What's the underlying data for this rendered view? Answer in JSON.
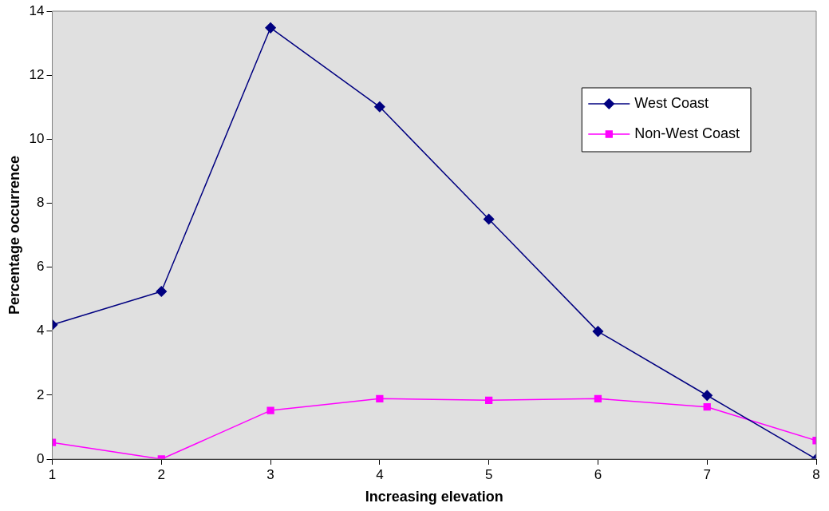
{
  "chart_data": {
    "type": "line",
    "xlabel": "Increasing elevation",
    "ylabel": "Percentage occurrence",
    "x": [
      1,
      2,
      3,
      4,
      5,
      6,
      7,
      8
    ],
    "xlim": [
      1,
      8
    ],
    "xticks": [
      1,
      2,
      3,
      4,
      5,
      6,
      7,
      8
    ],
    "ylim": [
      0,
      14
    ],
    "yticks": [
      0,
      2,
      4,
      6,
      8,
      10,
      12,
      14
    ],
    "grid": false,
    "legend": "top right",
    "line_style": "solid",
    "series": [
      {
        "name": "West Coast",
        "color": "#000080",
        "marker": "diamond",
        "values": [
          4.2,
          5.24,
          13.48,
          11.01,
          7.5,
          3.99,
          1.99,
          0
        ]
      },
      {
        "name": "Non-West Coast",
        "color": "#ff00ff",
        "marker": "square",
        "values": [
          0.52,
          0,
          1.52,
          1.89,
          1.84,
          1.89,
          1.63,
          0.58
        ]
      }
    ]
  }
}
